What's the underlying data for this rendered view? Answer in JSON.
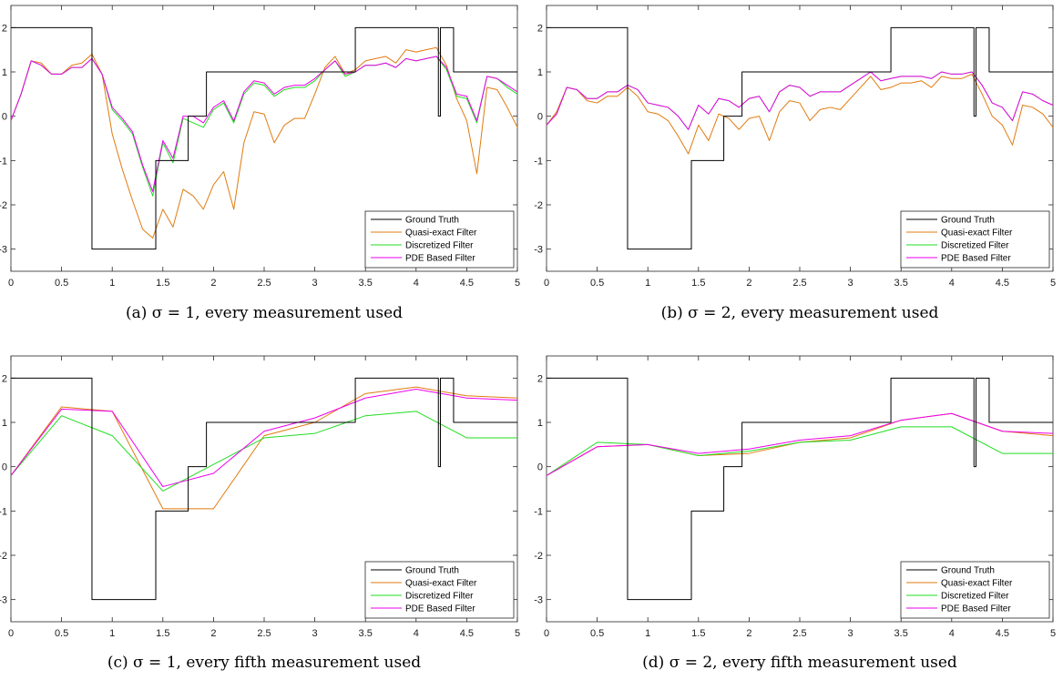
{
  "chart_data": [
    {
      "type": "line",
      "caption": "(a) σ = 1, every measurement used",
      "xlim": [
        0,
        5
      ],
      "ylim": [
        -3.5,
        2.5
      ],
      "xticks": [
        "0",
        "0.5",
        "1",
        "1.5",
        "2",
        "2.5",
        "3",
        "3.5",
        "4",
        "4.5",
        "5"
      ],
      "yticks": [
        "-3",
        "-2",
        "-1",
        "0",
        "1",
        "2"
      ],
      "legend_position": "lower-right",
      "series": [
        {
          "name": "Ground Truth",
          "color": "#000000",
          "x": [
            0,
            0.8,
            0.8,
            1.43,
            1.43,
            1.75,
            1.75,
            1.93,
            1.93,
            3.4,
            3.4,
            4.22,
            4.22,
            4.24,
            4.24,
            4.37,
            4.37,
            5
          ],
          "y": [
            2,
            2,
            -3,
            -3,
            -1,
            -1,
            0,
            0,
            1,
            1,
            2,
            2,
            0,
            0,
            2,
            2,
            1,
            1
          ]
        },
        {
          "name": "Quasi-exact Filter",
          "color": "#e07b10",
          "x": [
            0,
            0.1,
            0.2,
            0.3,
            0.4,
            0.5,
            0.6,
            0.7,
            0.8,
            0.9,
            1.0,
            1.1,
            1.2,
            1.3,
            1.4,
            1.5,
            1.6,
            1.7,
            1.8,
            1.9,
            2.0,
            2.1,
            2.2,
            2.3,
            2.4,
            2.5,
            2.6,
            2.7,
            2.8,
            2.9,
            3.0,
            3.1,
            3.2,
            3.3,
            3.4,
            3.5,
            3.6,
            3.7,
            3.8,
            3.9,
            4.0,
            4.1,
            4.2,
            4.3,
            4.4,
            4.5,
            4.6,
            4.7,
            4.8,
            4.9,
            5.0
          ],
          "y": [
            -0.1,
            0.5,
            1.25,
            1.2,
            0.95,
            0.95,
            1.15,
            1.2,
            1.4,
            0.95,
            -0.4,
            -1.2,
            -1.9,
            -2.55,
            -2.75,
            -2.1,
            -2.5,
            -1.65,
            -1.8,
            -2.1,
            -1.55,
            -1.25,
            -2.1,
            -0.6,
            0.1,
            0.05,
            -0.6,
            -0.2,
            -0.05,
            -0.05,
            0.5,
            1.1,
            1.35,
            0.95,
            1.05,
            1.25,
            1.3,
            1.35,
            1.2,
            1.5,
            1.45,
            1.5,
            1.55,
            1.15,
            0.4,
            -0.1,
            -1.3,
            0.65,
            0.6,
            0.2,
            -0.25
          ]
        },
        {
          "name": "Discretized Filter",
          "color": "#22dd22",
          "x": [
            0,
            0.1,
            0.2,
            0.3,
            0.4,
            0.5,
            0.6,
            0.7,
            0.8,
            0.9,
            1.0,
            1.1,
            1.2,
            1.3,
            1.4,
            1.5,
            1.6,
            1.7,
            1.8,
            1.9,
            2.0,
            2.1,
            2.2,
            2.3,
            2.4,
            2.5,
            2.6,
            2.7,
            2.8,
            2.9,
            3.0,
            3.1,
            3.2,
            3.3,
            3.4,
            3.5,
            3.6,
            3.7,
            3.8,
            3.9,
            4.0,
            4.1,
            4.2,
            4.3,
            4.4,
            4.5,
            4.6,
            4.7,
            4.8,
            4.9,
            5.0
          ],
          "y": [
            -0.1,
            0.5,
            1.25,
            1.15,
            0.95,
            0.95,
            1.1,
            1.1,
            1.3,
            0.95,
            0.15,
            -0.1,
            -0.4,
            -1.15,
            -1.8,
            -0.6,
            -1.05,
            -0.05,
            -0.15,
            -0.25,
            0.15,
            0.3,
            -0.15,
            0.5,
            0.75,
            0.7,
            0.45,
            0.6,
            0.65,
            0.65,
            0.8,
            1.05,
            1.25,
            0.9,
            1.0,
            1.15,
            1.15,
            1.2,
            1.1,
            1.3,
            1.25,
            1.3,
            1.35,
            1.05,
            0.45,
            0.4,
            -0.15,
            0.9,
            0.85,
            0.65,
            0.5
          ]
        },
        {
          "name": "PDE Based Filter",
          "color": "#ee00ee",
          "x": [
            0,
            0.1,
            0.2,
            0.3,
            0.4,
            0.5,
            0.6,
            0.7,
            0.8,
            0.9,
            1.0,
            1.1,
            1.2,
            1.3,
            1.4,
            1.5,
            1.6,
            1.7,
            1.8,
            1.9,
            2.0,
            2.1,
            2.2,
            2.3,
            2.4,
            2.5,
            2.6,
            2.7,
            2.8,
            2.9,
            3.0,
            3.1,
            3.2,
            3.3,
            3.4,
            3.5,
            3.6,
            3.7,
            3.8,
            3.9,
            4.0,
            4.1,
            4.2,
            4.3,
            4.4,
            4.5,
            4.6,
            4.7,
            4.8,
            4.9,
            5.0
          ],
          "y": [
            -0.1,
            0.5,
            1.25,
            1.15,
            0.95,
            0.95,
            1.1,
            1.1,
            1.3,
            0.95,
            0.2,
            -0.05,
            -0.35,
            -1.1,
            -1.7,
            -0.55,
            -0.95,
            0.0,
            0.0,
            -0.15,
            0.2,
            0.35,
            -0.1,
            0.55,
            0.8,
            0.75,
            0.5,
            0.65,
            0.7,
            0.7,
            0.85,
            1.05,
            1.25,
            0.95,
            1.0,
            1.15,
            1.15,
            1.2,
            1.1,
            1.3,
            1.25,
            1.3,
            1.35,
            1.1,
            0.5,
            0.45,
            -0.1,
            0.9,
            0.85,
            0.7,
            0.55
          ]
        }
      ]
    },
    {
      "type": "line",
      "caption": "(b) σ = 2, every measurement used",
      "xlim": [
        0,
        5
      ],
      "ylim": [
        -3.5,
        2.5
      ],
      "xticks": [
        "0",
        "0.5",
        "1",
        "1.5",
        "2",
        "2.5",
        "3",
        "3.5",
        "4",
        "4.5",
        "5"
      ],
      "yticks": [
        "-3",
        "-2",
        "-1",
        "0",
        "1",
        "2"
      ],
      "legend_position": "lower-right",
      "series": [
        {
          "name": "Ground Truth",
          "color": "#000000",
          "x": [
            0,
            0.8,
            0.8,
            1.43,
            1.43,
            1.75,
            1.75,
            1.93,
            1.93,
            3.4,
            3.4,
            4.22,
            4.22,
            4.24,
            4.24,
            4.37,
            4.37,
            5
          ],
          "y": [
            2,
            2,
            -3,
            -3,
            -1,
            -1,
            0,
            0,
            1,
            1,
            2,
            2,
            0,
            0,
            2,
            2,
            1,
            1
          ]
        },
        {
          "name": "Quasi-exact Filter",
          "color": "#e07b10",
          "x": [
            0,
            0.1,
            0.2,
            0.3,
            0.4,
            0.5,
            0.6,
            0.7,
            0.8,
            0.9,
            1.0,
            1.1,
            1.2,
            1.3,
            1.4,
            1.5,
            1.6,
            1.7,
            1.8,
            1.9,
            2.0,
            2.1,
            2.2,
            2.3,
            2.4,
            2.5,
            2.6,
            2.7,
            2.8,
            2.9,
            3.0,
            3.1,
            3.2,
            3.3,
            3.4,
            3.5,
            3.6,
            3.7,
            3.8,
            3.9,
            4.0,
            4.1,
            4.2,
            4.3,
            4.4,
            4.5,
            4.6,
            4.7,
            4.8,
            4.9,
            5.0
          ],
          "y": [
            -0.2,
            0.1,
            0.65,
            0.6,
            0.35,
            0.3,
            0.45,
            0.45,
            0.65,
            0.45,
            0.1,
            0.05,
            -0.1,
            -0.45,
            -0.85,
            -0.2,
            -0.55,
            0.05,
            -0.05,
            -0.3,
            -0.05,
            0.0,
            -0.55,
            0.1,
            0.35,
            0.3,
            -0.1,
            0.15,
            0.2,
            0.15,
            0.4,
            0.65,
            0.9,
            0.6,
            0.65,
            0.75,
            0.75,
            0.8,
            0.65,
            0.9,
            0.85,
            0.85,
            0.95,
            0.5,
            0.0,
            -0.2,
            -0.65,
            0.25,
            0.2,
            0.05,
            -0.25
          ]
        },
        {
          "name": "Discretized Filter",
          "color": "#22dd22",
          "x": [
            0,
            0.1,
            0.2,
            0.3,
            0.4,
            0.5,
            0.6,
            0.7,
            0.8,
            0.9,
            1.0,
            1.1,
            1.2,
            1.3,
            1.4,
            1.5,
            1.6,
            1.7,
            1.8,
            1.9,
            2.0,
            2.1,
            2.2,
            2.3,
            2.4,
            2.5,
            2.6,
            2.7,
            2.8,
            2.9,
            3.0,
            3.1,
            3.2,
            3.3,
            3.4,
            3.5,
            3.6,
            3.7,
            3.8,
            3.9,
            4.0,
            4.1,
            4.2,
            4.3,
            4.4,
            4.5,
            4.6,
            4.7,
            4.8,
            4.9,
            5.0
          ],
          "y": [
            -0.2,
            0.05,
            0.65,
            0.6,
            0.4,
            0.4,
            0.55,
            0.55,
            0.7,
            0.6,
            0.3,
            0.25,
            0.2,
            0.0,
            -0.3,
            0.25,
            0.05,
            0.4,
            0.35,
            0.2,
            0.4,
            0.45,
            0.1,
            0.55,
            0.7,
            0.65,
            0.45,
            0.55,
            0.55,
            0.55,
            0.7,
            0.85,
            1.0,
            0.8,
            0.85,
            0.9,
            0.9,
            0.9,
            0.85,
            1.0,
            0.95,
            0.95,
            1.0,
            0.7,
            0.3,
            0.2,
            -0.1,
            0.55,
            0.5,
            0.35,
            0.25
          ]
        },
        {
          "name": "PDE Based Filter",
          "color": "#ee00ee",
          "x": [
            0,
            0.1,
            0.2,
            0.3,
            0.4,
            0.5,
            0.6,
            0.7,
            0.8,
            0.9,
            1.0,
            1.1,
            1.2,
            1.3,
            1.4,
            1.5,
            1.6,
            1.7,
            1.8,
            1.9,
            2.0,
            2.1,
            2.2,
            2.3,
            2.4,
            2.5,
            2.6,
            2.7,
            2.8,
            2.9,
            3.0,
            3.1,
            3.2,
            3.3,
            3.4,
            3.5,
            3.6,
            3.7,
            3.8,
            3.9,
            4.0,
            4.1,
            4.2,
            4.3,
            4.4,
            4.5,
            4.6,
            4.7,
            4.8,
            4.9,
            5.0
          ],
          "y": [
            -0.2,
            0.05,
            0.65,
            0.6,
            0.4,
            0.4,
            0.55,
            0.55,
            0.7,
            0.6,
            0.3,
            0.25,
            0.2,
            0.0,
            -0.3,
            0.25,
            0.05,
            0.4,
            0.35,
            0.2,
            0.4,
            0.45,
            0.1,
            0.55,
            0.7,
            0.65,
            0.45,
            0.55,
            0.55,
            0.55,
            0.7,
            0.85,
            1.0,
            0.8,
            0.85,
            0.9,
            0.9,
            0.9,
            0.85,
            1.0,
            0.95,
            0.95,
            1.0,
            0.7,
            0.3,
            0.2,
            -0.1,
            0.55,
            0.5,
            0.35,
            0.25
          ]
        }
      ]
    },
    {
      "type": "line",
      "caption": "(c) σ = 1, every fifth measurement used",
      "xlim": [
        0,
        5
      ],
      "ylim": [
        -3.5,
        2.5
      ],
      "xticks": [
        "0",
        "0.5",
        "1",
        "1.5",
        "2",
        "2.5",
        "3",
        "3.5",
        "4",
        "4.5",
        "5"
      ],
      "yticks": [
        "-3",
        "-2",
        "-1",
        "0",
        "1",
        "2"
      ],
      "legend_position": "lower-right",
      "series": [
        {
          "name": "Ground Truth",
          "color": "#000000",
          "x": [
            0,
            0.8,
            0.8,
            1.43,
            1.43,
            1.75,
            1.75,
            1.93,
            1.93,
            3.4,
            3.4,
            4.22,
            4.22,
            4.24,
            4.24,
            4.37,
            4.37,
            5
          ],
          "y": [
            2,
            2,
            -3,
            -3,
            -1,
            -1,
            0,
            0,
            1,
            1,
            2,
            2,
            0,
            0,
            2,
            2,
            1,
            1
          ]
        },
        {
          "name": "Quasi-exact Filter",
          "color": "#e07b10",
          "x": [
            0,
            0.5,
            1.0,
            1.5,
            2.0,
            2.5,
            3.0,
            3.5,
            4.0,
            4.5,
            5.0
          ],
          "y": [
            -0.2,
            1.35,
            1.25,
            -0.95,
            -0.95,
            0.7,
            1.0,
            1.65,
            1.8,
            1.6,
            1.55
          ]
        },
        {
          "name": "Discretized Filter",
          "color": "#22dd22",
          "x": [
            0,
            0.5,
            1.0,
            1.5,
            2.0,
            2.5,
            3.0,
            3.5,
            4.0,
            4.5,
            5.0
          ],
          "y": [
            -0.2,
            1.15,
            0.7,
            -0.55,
            0.05,
            0.65,
            0.75,
            1.15,
            1.25,
            0.65,
            0.65
          ]
        },
        {
          "name": "PDE Based Filter",
          "color": "#ee00ee",
          "x": [
            0,
            0.5,
            1.0,
            1.5,
            2.0,
            2.5,
            3.0,
            3.5,
            4.0,
            4.5,
            5.0
          ],
          "y": [
            -0.2,
            1.3,
            1.25,
            -0.45,
            -0.15,
            0.8,
            1.1,
            1.55,
            1.75,
            1.55,
            1.5
          ]
        }
      ]
    },
    {
      "type": "line",
      "caption": "(d) σ = 2, every fifth measurement used",
      "xlim": [
        0,
        5
      ],
      "ylim": [
        -3.5,
        2.5
      ],
      "xticks": [
        "0",
        "0.5",
        "1",
        "1.5",
        "2",
        "2.5",
        "3",
        "3.5",
        "4",
        "4.5",
        "5"
      ],
      "yticks": [
        "-3",
        "-2",
        "-1",
        "0",
        "1",
        "2"
      ],
      "legend_position": "lower-right",
      "series": [
        {
          "name": "Ground Truth",
          "color": "#000000",
          "x": [
            0,
            0.8,
            0.8,
            1.43,
            1.43,
            1.75,
            1.75,
            1.93,
            1.93,
            3.4,
            3.4,
            4.22,
            4.22,
            4.24,
            4.24,
            4.37,
            4.37,
            5
          ],
          "y": [
            2,
            2,
            -3,
            -3,
            -1,
            -1,
            0,
            0,
            1,
            1,
            2,
            2,
            0,
            0,
            2,
            2,
            1,
            1
          ]
        },
        {
          "name": "Quasi-exact Filter",
          "color": "#e07b10",
          "x": [
            0,
            0.5,
            1.0,
            1.5,
            2.0,
            2.5,
            3.0,
            3.5,
            4.0,
            4.5,
            5.0
          ],
          "y": [
            -0.2,
            0.45,
            0.5,
            0.25,
            0.3,
            0.55,
            0.65,
            1.05,
            1.2,
            0.8,
            0.7
          ]
        },
        {
          "name": "Discretized Filter",
          "color": "#22dd22",
          "x": [
            0,
            0.5,
            1.0,
            1.5,
            2.0,
            2.5,
            3.0,
            3.5,
            4.0,
            4.5,
            5.0
          ],
          "y": [
            -0.2,
            0.55,
            0.5,
            0.25,
            0.35,
            0.55,
            0.6,
            0.9,
            0.9,
            0.3,
            0.3
          ]
        },
        {
          "name": "PDE Based Filter",
          "color": "#ee00ee",
          "x": [
            0,
            0.5,
            1.0,
            1.5,
            2.0,
            2.5,
            3.0,
            3.5,
            4.0,
            4.5,
            5.0
          ],
          "y": [
            -0.2,
            0.45,
            0.5,
            0.3,
            0.4,
            0.6,
            0.7,
            1.05,
            1.2,
            0.8,
            0.75
          ]
        }
      ]
    }
  ]
}
